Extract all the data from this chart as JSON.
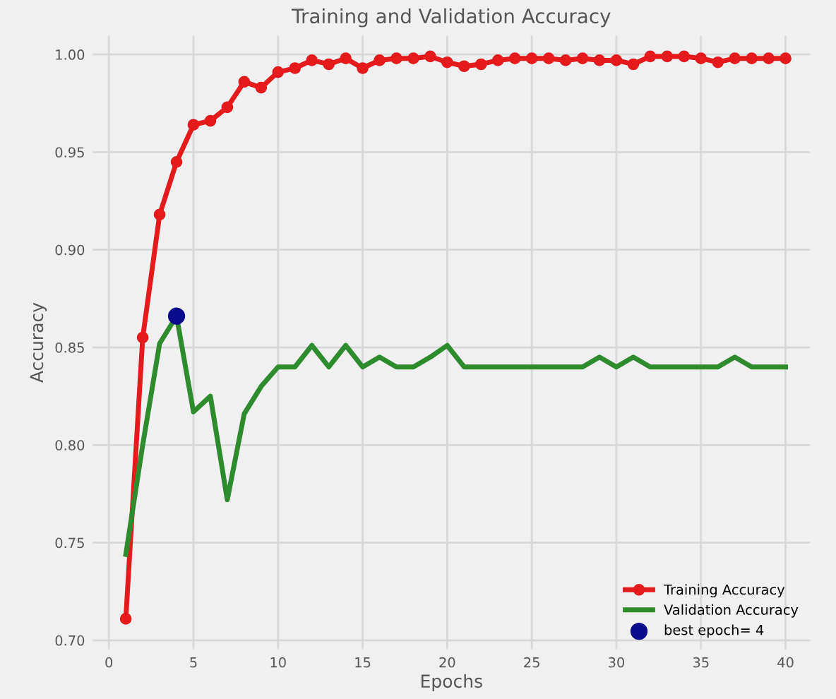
{
  "chart_data": {
    "type": "line",
    "title": "Training and Validation Accuracy",
    "xlabel": "Epochs",
    "ylabel": "Accuracy",
    "x": [
      1,
      2,
      3,
      4,
      5,
      6,
      7,
      8,
      9,
      10,
      11,
      12,
      13,
      14,
      15,
      16,
      17,
      18,
      19,
      20,
      21,
      22,
      23,
      24,
      25,
      26,
      27,
      28,
      29,
      30,
      31,
      32,
      33,
      34,
      35,
      36,
      37,
      38,
      39,
      40
    ],
    "series": [
      {
        "name": "Training Accuracy",
        "color": "#e41a1c",
        "marker": "circle",
        "values": [
          0.711,
          0.855,
          0.918,
          0.945,
          0.964,
          0.966,
          0.973,
          0.986,
          0.983,
          0.991,
          0.993,
          0.997,
          0.995,
          0.998,
          0.993,
          0.997,
          0.998,
          0.998,
          0.999,
          0.996,
          0.994,
          0.995,
          0.997,
          0.998,
          0.998,
          0.998,
          0.997,
          0.998,
          0.997,
          0.997,
          0.995,
          0.999,
          0.999,
          0.999,
          0.998,
          0.996,
          0.998,
          0.998,
          0.998,
          0.998
        ]
      },
      {
        "name": "Validation Accuracy",
        "color": "#2e8b2e",
        "marker": "none",
        "values": [
          0.744,
          0.8,
          0.852,
          0.866,
          0.817,
          0.825,
          0.772,
          0.816,
          0.83,
          0.84,
          0.84,
          0.851,
          0.84,
          0.851,
          0.84,
          0.845,
          0.84,
          0.84,
          0.845,
          0.851,
          0.84,
          0.84,
          0.84,
          0.84,
          0.84,
          0.84,
          0.84,
          0.84,
          0.845,
          0.84,
          0.845,
          0.84,
          0.84,
          0.84,
          0.84,
          0.84,
          0.845,
          0.84,
          0.84,
          0.84
        ]
      },
      {
        "name": "best epoch= 4",
        "type": "scatter",
        "color": "#0a0a8c",
        "x": [
          4
        ],
        "values": [
          0.866
        ]
      }
    ],
    "xlim": [
      -1,
      41.5
    ],
    "ylim": [
      0.695,
      1.01
    ],
    "xticks": [
      0,
      5,
      10,
      15,
      20,
      25,
      30,
      35,
      40
    ],
    "yticks": [
      {
        "value": 0.7,
        "label": "0.70"
      },
      {
        "value": 0.75,
        "label": "0.75"
      },
      {
        "value": 0.8,
        "label": "0.80"
      },
      {
        "value": 0.85,
        "label": "0.85"
      },
      {
        "value": 0.9,
        "label": "0.90"
      },
      {
        "value": 0.95,
        "label": "0.95"
      },
      {
        "value": 1.0,
        "label": "1.00"
      }
    ],
    "grid": true,
    "legend": "bottom right"
  }
}
